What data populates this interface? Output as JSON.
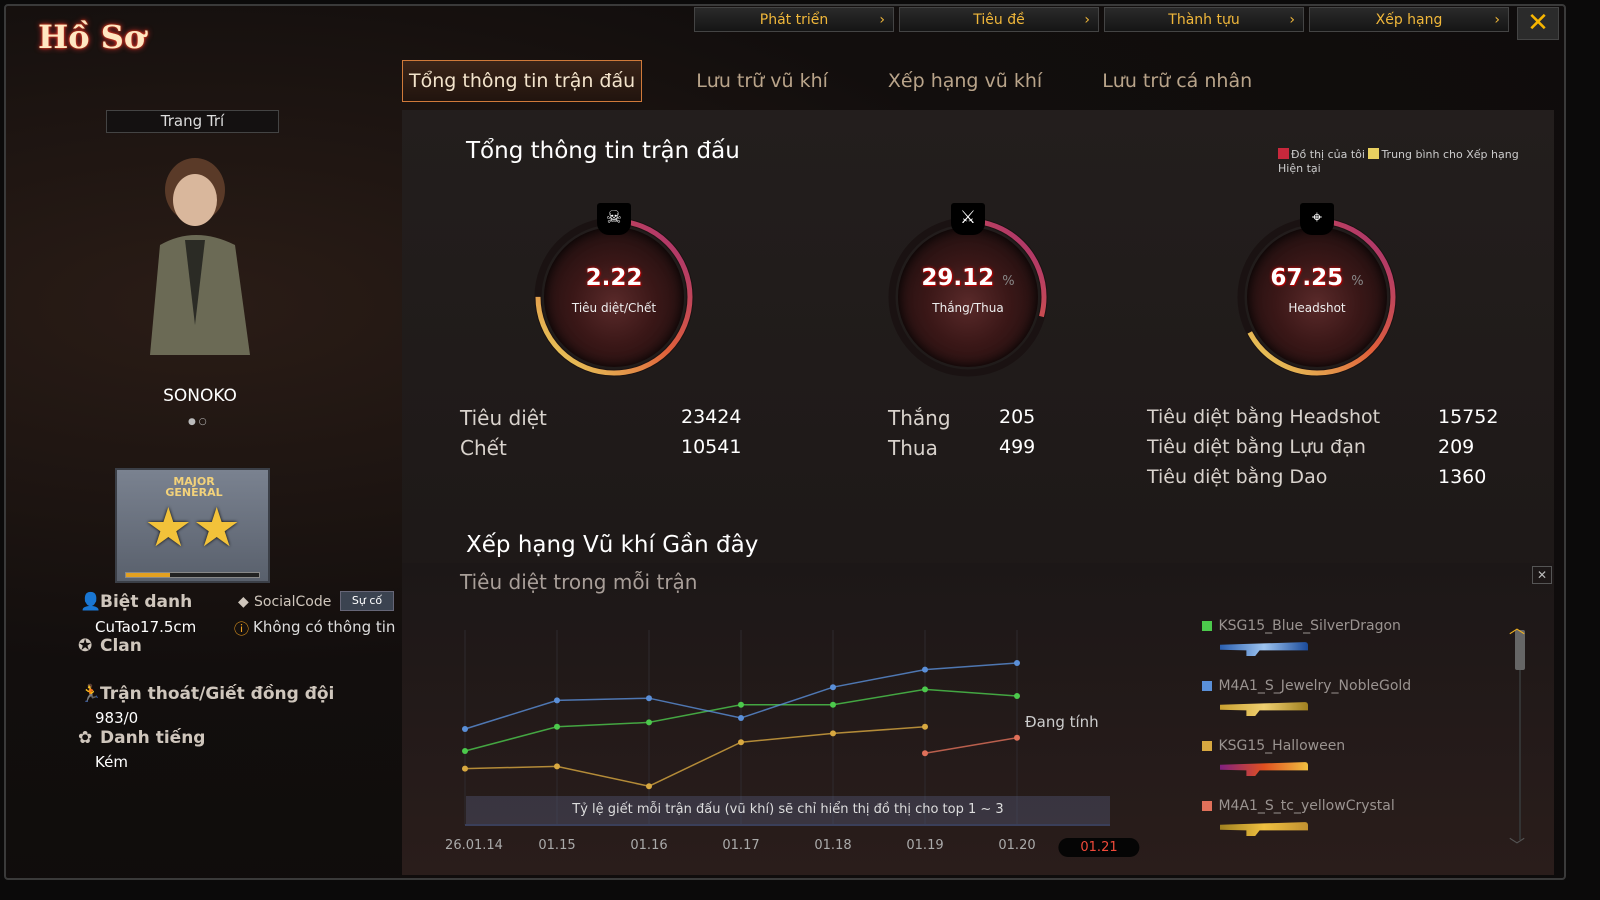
{
  "window": {
    "title": "Hồ Sơ",
    "close_icon": "close-x-icon"
  },
  "top_nav": [
    {
      "label": "Phát triển"
    },
    {
      "label": "Tiêu đề"
    },
    {
      "label": "Thành tựu"
    },
    {
      "label": "Xếp hạng"
    }
  ],
  "tabs": [
    {
      "label": "Tổng thông tin trận đấu",
      "active": true
    },
    {
      "label": "Lưu trữ vũ khí"
    },
    {
      "label": "Xếp hạng vũ khí"
    },
    {
      "label": "Lưu trữ cá nhân"
    }
  ],
  "profile": {
    "decor_button": "Trang Trí",
    "name": "SONOKO",
    "rank": "MAJOR GENERAL",
    "rank_progress": 0.33,
    "nickname_label": "Biệt danh",
    "nickname": "CuTao17.5cm",
    "social_label": "SocialCode",
    "social_button": "Sự cố",
    "social_value": "Không có thông tin",
    "clan_label": "Clan",
    "escape_label": "Trận thoát/Giết đồng đội",
    "escape_value": "983/0",
    "reputation_label": "Danh tiếng",
    "reputation_value": "Kém"
  },
  "summary": {
    "title": "Tổng thông tin trận đấu",
    "legend": [
      {
        "label": "Đồ thị của tôi",
        "color": "#c8283c"
      },
      {
        "label": "Trung bình cho Xếp hạng Hiện tại",
        "color": "#e8d060"
      }
    ],
    "gauges": [
      {
        "value": "2.22",
        "unit": "",
        "label": "Tiêu diệt/Chết",
        "icon": "skull-icon",
        "fill": 0.75
      },
      {
        "value": "29.12",
        "unit": "%",
        "label": "Thắng/Thua",
        "icon": "crossed-rifles-icon",
        "fill": 0.2912
      },
      {
        "value": "67.25",
        "unit": "%",
        "label": "Headshot",
        "icon": "headshot-icon",
        "fill": 0.6725
      }
    ],
    "stats": [
      [
        {
          "label": "Tiêu diệt",
          "value": "23424"
        },
        {
          "label": "Chết",
          "value": "10541"
        }
      ],
      [
        {
          "label": "Thắng",
          "value": "205"
        },
        {
          "label": "Thua",
          "value": "499"
        }
      ],
      [
        {
          "label": "Tiêu diệt bằng Headshot",
          "value": "15752"
        },
        {
          "label": "Tiêu diệt bằng Lựu đạn",
          "value": "209"
        },
        {
          "label": "Tiêu diệt bằng Dao",
          "value": "1360"
        }
      ]
    ]
  },
  "recent": {
    "title": "Xếp hạng Vũ khí Gần đây",
    "subtitle": "Tiêu diệt trong mỗi trận",
    "note": "Tỷ lệ giết mỗi trận đấu (vũ khí) sẽ chỉ hiển thị đồ thị cho top 1 ~ 3",
    "pending": "Đang tính"
  },
  "chart_data": {
    "type": "line",
    "categories": [
      "26.01.14",
      "01.15",
      "01.16",
      "01.17",
      "01.18",
      "01.19",
      "01.20",
      "01.21"
    ],
    "selected": "01.21",
    "ylim": [
      0,
      100
    ],
    "grid": true,
    "legend_placement": "right",
    "series": [
      {
        "name": "KSG15_Blue_SilverDragon",
        "color": "#4cc94c",
        "values": [
          45,
          56,
          58,
          66,
          66,
          73,
          70,
          null
        ]
      },
      {
        "name": "M4A1_S_Jewelry_NobleGold",
        "color": "#5a8fd8",
        "values": [
          55,
          68,
          69,
          60,
          74,
          82,
          85,
          null
        ]
      },
      {
        "name": "KSG15_Halloween",
        "color": "#d8a840",
        "values": [
          37,
          38,
          29,
          49,
          53,
          56,
          null,
          null
        ]
      },
      {
        "name": "M4A1_S_tc_yellowCrystal",
        "color": "#e0705a",
        "values": [
          null,
          null,
          null,
          null,
          null,
          44,
          51,
          null
        ]
      }
    ]
  }
}
